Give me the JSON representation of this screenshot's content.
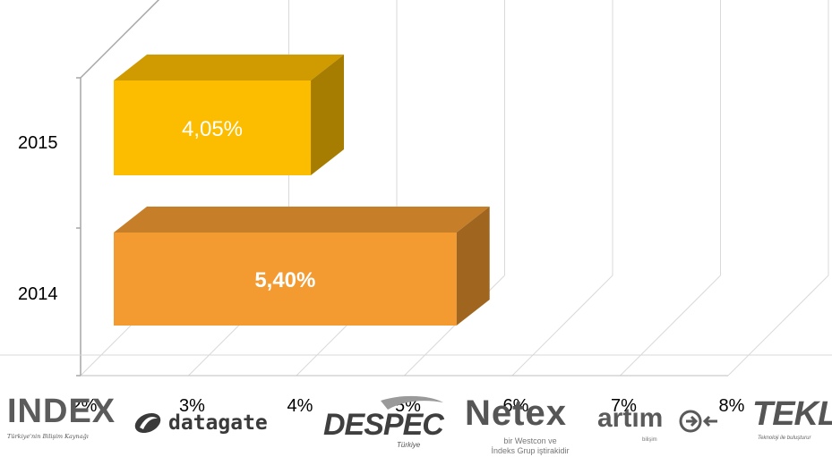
{
  "chart_data": {
    "type": "bar",
    "orientation": "horizontal",
    "style": "3d",
    "categories": [
      "2014",
      "2015"
    ],
    "values": [
      5.4,
      4.05
    ],
    "data_labels": [
      "5,40%",
      "4,05%"
    ],
    "bar_colors": [
      "#f39a31",
      "#fcbd00"
    ],
    "label_colors": [
      "#ffffff",
      "#ffffff"
    ],
    "label_bold": [
      true,
      false
    ],
    "xlim": [
      2,
      8
    ],
    "x_ticks": [
      2,
      3,
      4,
      5,
      6,
      7,
      8
    ],
    "x_tick_labels": [
      "2%",
      "3%",
      "4%",
      "5%",
      "6%",
      "7%",
      "8%"
    ],
    "grid": true,
    "legend": "none",
    "title": "",
    "xlabel": "",
    "ylabel": ""
  },
  "logos": {
    "index": {
      "name": "INDEX",
      "tagline": "Türkiye'nin Bilişim Kaynağı"
    },
    "datagate": {
      "name": "datagate"
    },
    "despec": {
      "name": "DESPEC",
      "sub": "Türkiye"
    },
    "netex": {
      "name": "Netex",
      "sub1": "bir Westcon ve",
      "sub2": "İndeks Grup iştirakidir"
    },
    "artim": {
      "name": "artım",
      "sub": "bilişim"
    },
    "teklos": {
      "name": "TEKLOS",
      "tagline": "Teknoloji ile buluşturur"
    }
  }
}
